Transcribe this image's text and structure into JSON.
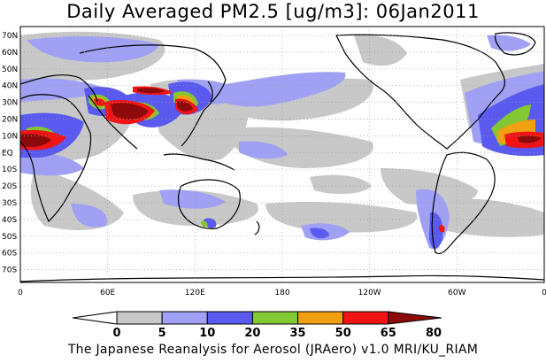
{
  "title": "Daily Averaged PM2.5 [ug/m3]: 06Jan2011",
  "credit": "The Japanese Reanalysis for Aerosol (JRAero) v1.0 MRI/KU_RIAM",
  "map": {
    "lat_labels": [
      "70N",
      "60N",
      "50N",
      "40N",
      "30N",
      "20N",
      "10N",
      "EQ",
      "10S",
      "20S",
      "30S",
      "40S",
      "50S",
      "60S",
      "70S"
    ],
    "lon_labels": [
      "0",
      "60E",
      "120E",
      "180",
      "120W",
      "60W",
      "0"
    ],
    "ocean_color": "#ffffff",
    "coast_color": "#000000",
    "grid_color": "#9a9a9a"
  },
  "colorbar": {
    "labels": [
      "0",
      "5",
      "10",
      "20",
      "35",
      "50",
      "65",
      "80"
    ],
    "colors": [
      "#ffffff",
      "#c8c8c8",
      "#a0a0f5",
      "#5a5af0",
      "#82c832",
      "#f0a010",
      "#f01414",
      "#8c0a0a"
    ]
  }
}
